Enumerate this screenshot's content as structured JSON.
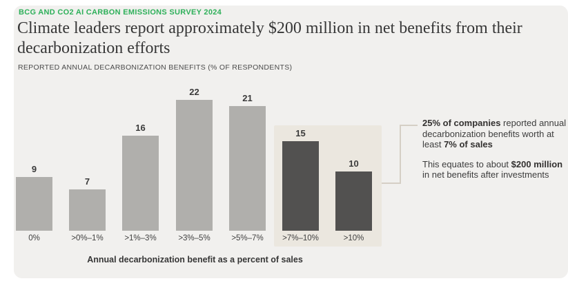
{
  "page": {
    "kicker": "BCG AND CO2 AI CARBON EMISSIONS SURVEY 2024",
    "title": "Climate leaders report approximately $200 million in net benefits from their decarbonization efforts",
    "subtitle": "REPORTED ANNUAL DECARBONIZATION BENEFITS (% OF RESPONDENTS)"
  },
  "chart_data": {
    "type": "bar",
    "categories": [
      "0%",
      ">0%–1%",
      ">1%–3%",
      ">3%–5%",
      ">5%–7%",
      ">7%–10%",
      ">10%"
    ],
    "values": [
      9,
      7,
      16,
      22,
      21,
      15,
      10
    ],
    "highlight_indices": [
      5,
      6
    ],
    "title": "REPORTED ANNUAL DECARBONIZATION BENEFITS (% OF RESPONDENTS)",
    "xlabel": "Annual decarbonization benefit as a percent of sales",
    "ylabel": "",
    "ylim": [
      0,
      24
    ],
    "grid": false,
    "legend": "none",
    "bar_color": "#b0afac",
    "highlight_bar_color": "#525150",
    "highlight_box_color": "#ebe7df"
  },
  "annotation": {
    "p1_bold1": "25% of companies",
    "p1_text1": " reported annual decarbonization benefits worth at least ",
    "p1_bold2": "7% of sales",
    "p2_text1": "This equates to about ",
    "p2_bold1": "$200 million",
    "p2_text2": " in net benefits after investments"
  },
  "colors": {
    "accent_green": "#2eb05a",
    "card_bg": "#f1f0ee",
    "text_dark": "#363636"
  }
}
